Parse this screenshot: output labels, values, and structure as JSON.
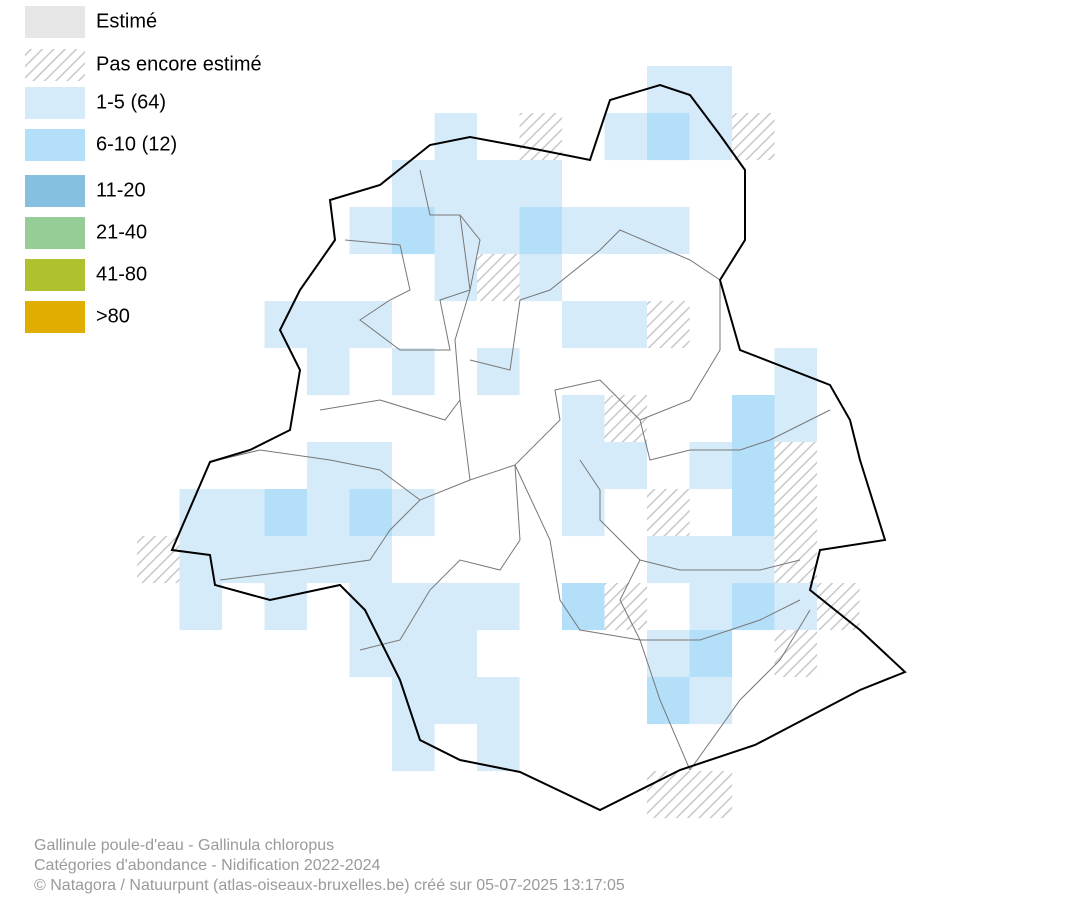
{
  "legend": [
    {
      "label": "Estimé",
      "color": "#e6e6e6"
    },
    {
      "label": "Pas encore estimé",
      "pattern": "hatch"
    },
    {
      "label": "1-5 (64)",
      "color": "#d6ebf9"
    },
    {
      "label": "6-10 (12)",
      "color": "#b3e0f8"
    },
    {
      "label": "11-20",
      "color": "#86bfe0"
    },
    {
      "label": "21-40",
      "color": "#96cc96"
    },
    {
      "label": "41-80",
      "color": "#b0c130"
    },
    {
      "label": ">80",
      "color": "#e0ad00"
    }
  ],
  "footer": [
    "Gallinule poule-d'eau - Gallinula chloropus",
    "Catégories d'abondance - Nidification 2022-2024",
    "© Natagora / Natuurpunt (atlas-oiseaux-bruxelles.be) créé sur 05-07-2025 13:17:05"
  ]
}
